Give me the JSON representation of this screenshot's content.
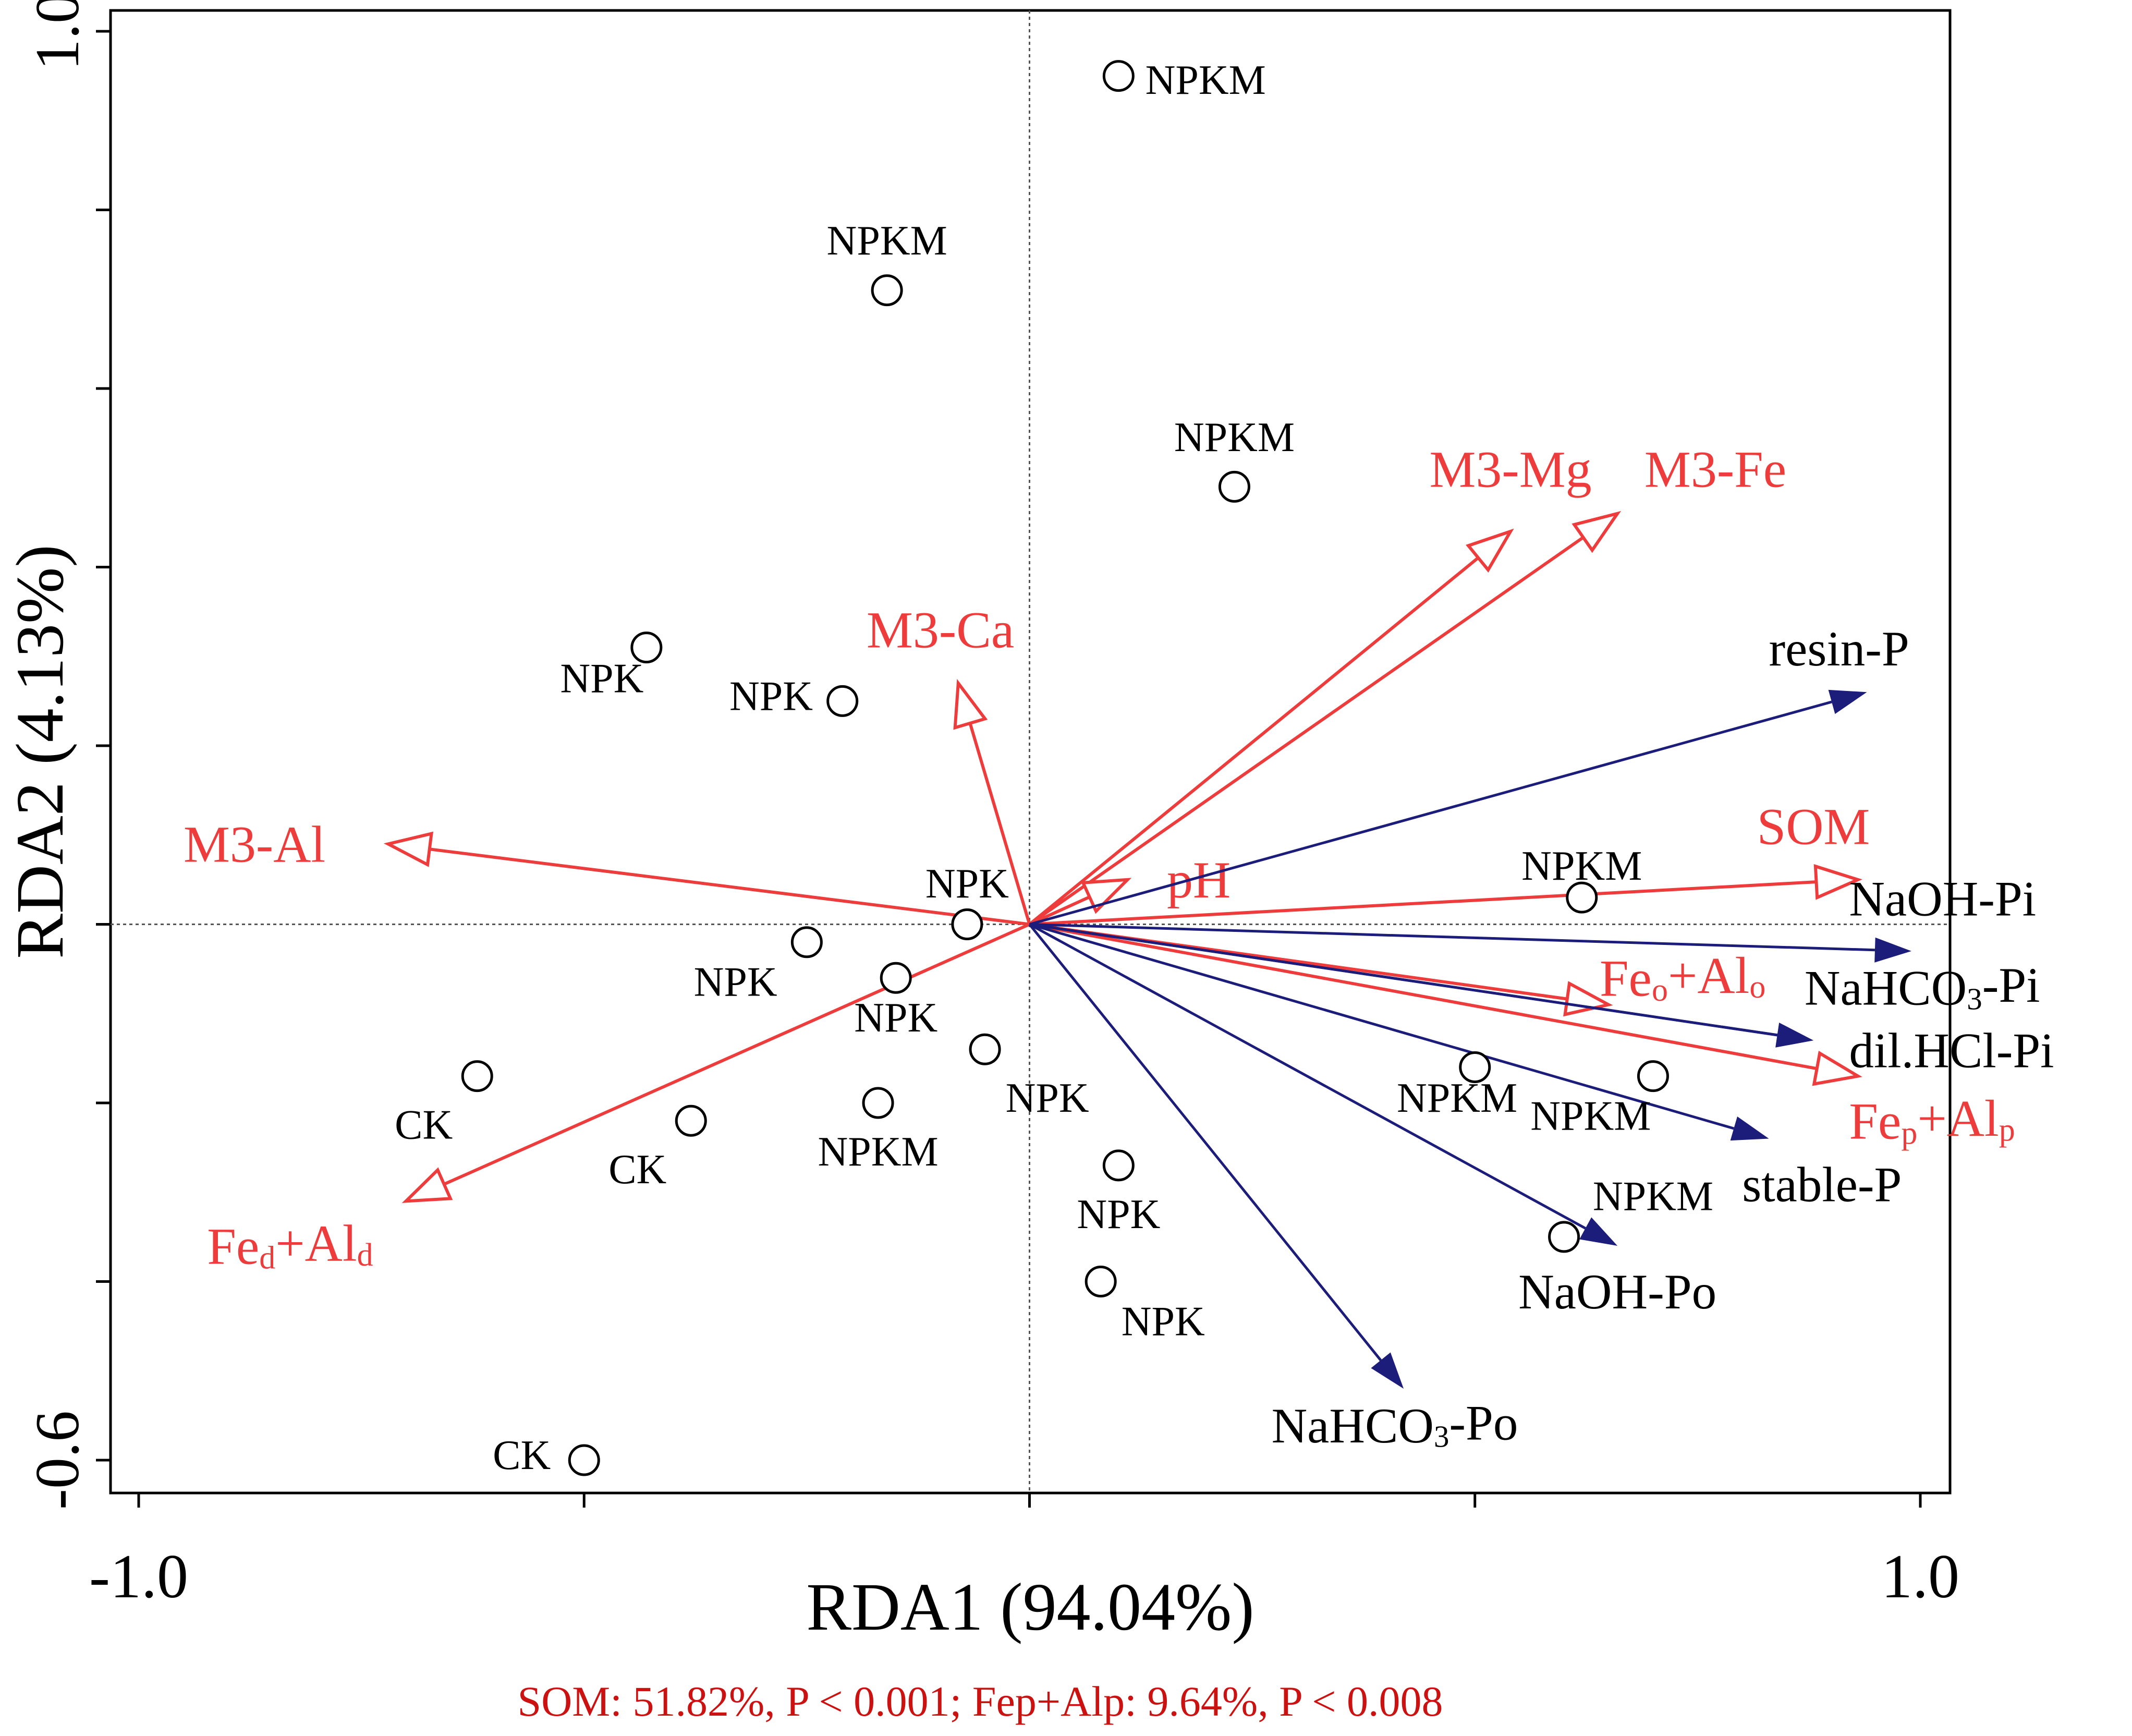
{
  "colors": {
    "env": "#ee3b3b",
    "species": "#1c1c7a",
    "axis": "#000000",
    "note": "#cc1111"
  },
  "chart_data": {
    "type": "scatter",
    "subtype": "rda-biplot",
    "xlabel": "RDA1 (94.04%)",
    "ylabel": "RDA2 (4.13%)",
    "xlim": [
      -1.07,
      1.07
    ],
    "ylim": [
      -0.64,
      1.02
    ],
    "xticks": [
      {
        "v": -1.0,
        "label": "-1.0"
      },
      {
        "v": 1.0,
        "label": "1.0"
      }
    ],
    "yticks": [
      {
        "v": 1.0,
        "label": "1.0"
      },
      {
        "v": -0.6,
        "label": "-0.6"
      }
    ],
    "minor_xticks": [
      -1.0,
      -0.5,
      0.0,
      0.5,
      1.0
    ],
    "minor_yticks": [
      1.0,
      0.8,
      0.6,
      0.4,
      0.2,
      0.0,
      -0.2,
      -0.4,
      -0.6
    ],
    "samples": [
      {
        "label": "NPKM",
        "x": 0.1,
        "y": 0.95,
        "lx": 0.13,
        "ly": 0.93,
        "anchor": "start"
      },
      {
        "label": "NPKM",
        "x": -0.16,
        "y": 0.71,
        "lx": -0.16,
        "ly": 0.75,
        "anchor": "middle"
      },
      {
        "label": "NPKM",
        "x": 0.23,
        "y": 0.49,
        "lx": 0.23,
        "ly": 0.53,
        "anchor": "middle"
      },
      {
        "label": "NPK",
        "x": -0.43,
        "y": 0.31,
        "lx": -0.48,
        "ly": 0.26,
        "anchor": "middle"
      },
      {
        "label": "NPK",
        "x": -0.21,
        "y": 0.25,
        "lx": -0.29,
        "ly": 0.24,
        "anchor": "middle"
      },
      {
        "label": "NPK",
        "x": -0.07,
        "y": 0.0,
        "lx": -0.07,
        "ly": 0.03,
        "anchor": "middle"
      },
      {
        "label": "NPKM",
        "x": 0.62,
        "y": 0.03,
        "lx": 0.62,
        "ly": 0.05,
        "anchor": "middle"
      },
      {
        "label": "NPK",
        "x": -0.25,
        "y": -0.02,
        "lx": -0.33,
        "ly": -0.08,
        "anchor": "middle"
      },
      {
        "label": "NPK",
        "x": -0.15,
        "y": -0.06,
        "lx": -0.15,
        "ly": -0.12,
        "anchor": "middle"
      },
      {
        "label": "NPK",
        "x": -0.05,
        "y": -0.14,
        "lx": 0.02,
        "ly": -0.21,
        "anchor": "middle"
      },
      {
        "label": "CK",
        "x": -0.62,
        "y": -0.17,
        "lx": -0.68,
        "ly": -0.24,
        "anchor": "middle"
      },
      {
        "label": "CK",
        "x": -0.38,
        "y": -0.22,
        "lx": -0.44,
        "ly": -0.29,
        "anchor": "middle"
      },
      {
        "label": "NPKM",
        "x": -0.17,
        "y": -0.2,
        "lx": -0.17,
        "ly": -0.27,
        "anchor": "middle"
      },
      {
        "label": "NPKM",
        "x": 0.5,
        "y": -0.16,
        "lx": 0.48,
        "ly": -0.21,
        "anchor": "middle"
      },
      {
        "label": "NPKM",
        "x": 0.7,
        "y": -0.17,
        "lx": 0.63,
        "ly": -0.23,
        "anchor": "middle"
      },
      {
        "label": "NPK",
        "x": 0.1,
        "y": -0.27,
        "lx": 0.1,
        "ly": -0.34,
        "anchor": "middle"
      },
      {
        "label": "NPKM",
        "x": 0.6,
        "y": -0.35,
        "lx": 0.7,
        "ly": -0.32,
        "anchor": "middle"
      },
      {
        "label": "NPK",
        "x": 0.08,
        "y": -0.4,
        "lx": 0.15,
        "ly": -0.46,
        "anchor": "middle"
      },
      {
        "label": "CK",
        "x": -0.5,
        "y": -0.6,
        "lx": -0.57,
        "ly": -0.61,
        "anchor": "middle"
      }
    ],
    "env_vectors": [
      {
        "label": "M3-Mg",
        "x": 0.54,
        "y": 0.44,
        "lx": 0.54,
        "ly": 0.49,
        "anchor": "middle"
      },
      {
        "label": "M3-Fe",
        "x": 0.66,
        "y": 0.46,
        "lx": 0.77,
        "ly": 0.49,
        "anchor": "middle"
      },
      {
        "label": "M3-Ca",
        "x": -0.08,
        "y": 0.27,
        "lx": -0.1,
        "ly": 0.31,
        "anchor": "middle"
      },
      {
        "label": "M3-Al",
        "x": -0.72,
        "y": 0.09,
        "lx": -0.87,
        "ly": 0.07,
        "anchor": "middle"
      },
      {
        "label": "pH",
        "x": 0.11,
        "y": 0.05,
        "lx": 0.19,
        "ly": 0.03,
        "anchor": "middle"
      },
      {
        "label": "SOM",
        "x": 0.93,
        "y": 0.05,
        "lx": 0.88,
        "ly": 0.09,
        "anchor": "middle"
      },
      {
        "label": "Feo+Alo",
        "x": 0.65,
        "y": -0.09,
        "lx": 0.64,
        "ly": -0.08,
        "anchor": "start",
        "sub1": "o",
        "sub2": "o"
      },
      {
        "label": "Fep+Alp",
        "x": 0.93,
        "y": -0.17,
        "lx": 0.92,
        "ly": -0.24,
        "anchor": "start",
        "sub1": "p",
        "sub2": "p"
      },
      {
        "label": "Fed+Ald",
        "x": -0.7,
        "y": -0.31,
        "lx": -0.83,
        "ly": -0.38,
        "anchor": "middle",
        "sub1": "d",
        "sub2": "d"
      }
    ],
    "species_vectors": [
      {
        "label": "resin-P",
        "x": 0.94,
        "y": 0.26,
        "lx": 0.83,
        "ly": 0.29,
        "anchor": "start"
      },
      {
        "label": "NaOH-Pi",
        "x": 0.99,
        "y": -0.03,
        "lx": 0.92,
        "ly": 0.01,
        "anchor": "start"
      },
      {
        "label": "NaHCO3-Pi",
        "x": 0.88,
        "y": -0.13,
        "lx": 0.87,
        "ly": -0.09,
        "anchor": "start",
        "sub_char": "3"
      },
      {
        "label": "dil.HCl-Pi",
        "x": 0.88,
        "y": -0.13,
        "lx": 0.92,
        "ly": -0.16,
        "anchor": "start"
      },
      {
        "label": "stable-P",
        "x": 0.83,
        "y": -0.24,
        "lx": 0.8,
        "ly": -0.31,
        "anchor": "start"
      },
      {
        "label": "NaOH-Po",
        "x": 0.66,
        "y": -0.36,
        "lx": 0.66,
        "ly": -0.43,
        "anchor": "middle"
      },
      {
        "label": "NaHCO3-Po",
        "x": 0.42,
        "y": -0.52,
        "lx": 0.41,
        "ly": -0.58,
        "anchor": "middle",
        "sub_char": "3"
      }
    ],
    "annotation": "SOM: 51.82%, P < 0.001; Fep+Alp: 9.64%, P < 0.008"
  }
}
